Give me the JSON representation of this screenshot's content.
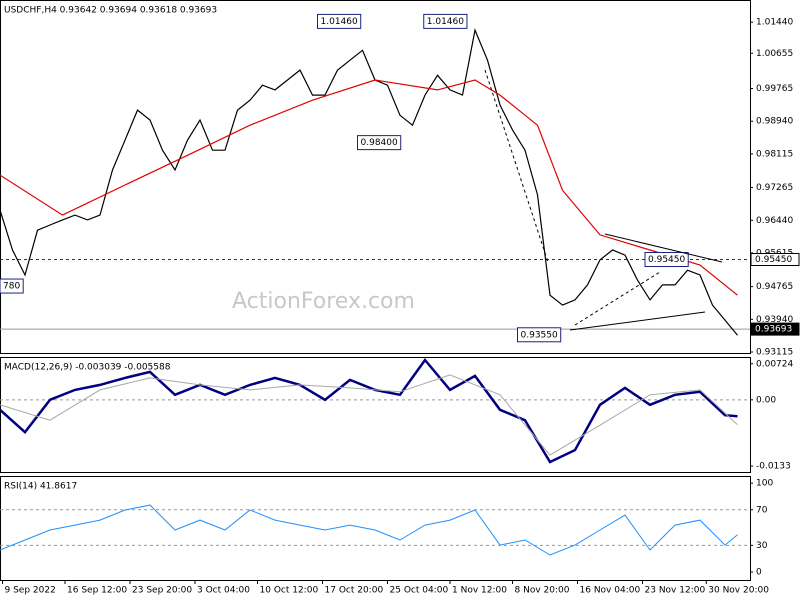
{
  "chart_data": [
    {
      "type": "line",
      "title": "USDCHF,H4  0.93642 0.93694 0.93618 0.93693",
      "watermark": "ActionForex.com",
      "xlim": [
        0,
        60
      ],
      "ylim": [
        0.9309,
        1.02
      ],
      "yticks": [
        {
          "value": 1.0144,
          "label": "1.01440"
        },
        {
          "value": 1.00655,
          "label": "1.00655"
        },
        {
          "value": 0.99765,
          "label": "0.99765"
        },
        {
          "value": 0.9894,
          "label": "0.98940"
        },
        {
          "value": 0.98115,
          "label": "0.98115"
        },
        {
          "value": 0.97265,
          "label": "0.97265"
        },
        {
          "value": 0.9644,
          "label": "0.96440"
        },
        {
          "value": 0.95615,
          "label": "0.95615"
        },
        {
          "value": 0.94765,
          "label": "0.94765"
        },
        {
          "value": 0.9394,
          "label": "0.93940"
        },
        {
          "value": 0.93115,
          "label": "0.93115"
        }
      ],
      "series": [
        {
          "color": "#000000",
          "x": [
            0,
            1,
            2,
            3,
            4,
            5,
            6,
            7,
            8,
            9,
            10,
            11,
            12,
            13,
            14,
            15,
            16,
            17,
            18,
            19,
            20,
            21,
            22,
            23,
            24,
            25,
            26,
            27,
            28,
            29,
            30,
            31,
            32,
            33,
            34,
            35,
            36,
            37,
            38,
            39,
            40,
            41,
            42,
            43,
            44,
            45,
            46,
            47,
            48,
            49,
            50,
            51,
            52,
            53,
            54,
            55,
            56,
            57,
            58,
            59
          ],
          "values": [
            0.967,
            0.9569,
            0.9506,
            0.9619,
            0.9632,
            0.9645,
            0.9657,
            0.9645,
            0.9657,
            0.9771,
            0.9846,
            0.9922,
            0.9897,
            0.9821,
            0.9771,
            0.9846,
            0.9897,
            0.9821,
            0.9821,
            0.9922,
            0.9947,
            0.9985,
            0.9973,
            0.9998,
            1.0023,
            0.996,
            0.996,
            1.0023,
            1.0048,
            1.0073,
            0.9998,
            0.9985,
            0.9909,
            0.9884,
            0.996,
            1.001,
            0.9973,
            0.996,
            1.0124,
            1.0048,
            0.9935,
            0.9872,
            0.9821,
            0.9708,
            0.9455,
            0.943,
            0.9443,
            0.9481,
            0.9544,
            0.9569,
            0.9556,
            0.9493,
            0.9443,
            0.9481,
            0.9481,
            0.9518,
            0.9506,
            0.943,
            0.9392,
            0.9354
          ]
        },
        {
          "color": "#e00000",
          "x": [
            0,
            5,
            10,
            15,
            20,
            25,
            30,
            35,
            38,
            40,
            43,
            45,
            48,
            52,
            56,
            59
          ],
          "values": [
            0.9758,
            0.9657,
            0.9733,
            0.9808,
            0.9884,
            0.9947,
            0.9998,
            0.9973,
            0.9998,
            0.996,
            0.9884,
            0.972,
            0.9607,
            0.9569,
            0.9531,
            0.9455
          ]
        }
      ],
      "hlines": [
        {
          "value": 0.9545,
          "label": "0.95450",
          "dash": true
        },
        {
          "value": 0.93693,
          "label": "0.93693",
          "dash": false
        }
      ],
      "annotations": [
        {
          "x": 25.4,
          "value": 1.0146,
          "label": "1.01460"
        },
        {
          "x": 33.9,
          "value": 1.0146,
          "label": "1.01460"
        },
        {
          "x": 28.6,
          "value": 0.984,
          "label": "0.98400"
        },
        {
          "x": 51.6,
          "value": 0.9545,
          "label": "0.95450"
        },
        {
          "x": 41.4,
          "value": 0.9355,
          "label": "0.93550"
        },
        {
          "x": 0,
          "value": 0.9478,
          "label": "780"
        }
      ]
    },
    {
      "type": "line",
      "title": "MACD(12,26,9) -0.003039 -0.005588",
      "xlim": [
        0,
        60
      ],
      "ylim": [
        -0.0145,
        0.0086
      ],
      "yticks": [
        0.00724,
        {
          "value": 0,
          "label": "0.00"
        },
        -0.0133
      ],
      "levels": [
        0
      ],
      "series": [
        {
          "color": "#000080",
          "width": 2.5,
          "x": [
            0,
            2,
            4,
            6,
            8,
            10,
            12,
            14,
            16,
            18,
            20,
            22,
            24,
            26,
            28,
            30,
            32,
            34,
            36,
            38,
            40,
            42,
            44,
            46,
            48,
            50,
            52,
            54,
            56,
            58,
            59
          ],
          "values": [
            -0.002,
            -0.0065,
            0,
            0.002,
            0.003,
            0.0044,
            0.0056,
            0.001,
            0.003,
            0.001,
            0.003,
            0.0044,
            0.003,
            0,
            0.004,
            0.002,
            0.001,
            0.008,
            0.002,
            0.0048,
            -0.002,
            -0.0041,
            -0.0125,
            -0.0101,
            -0.001,
            0.0024,
            -0.001,
            0.001,
            0.0016,
            -0.0031,
            -0.0033
          ]
        },
        {
          "color": "#a8a8a8",
          "width": 1,
          "x": [
            0,
            4,
            8,
            12,
            16,
            20,
            24,
            28,
            32,
            36,
            40,
            44,
            48,
            52,
            56,
            59
          ],
          "values": [
            -0.001,
            -0.0041,
            0.002,
            0.0044,
            0.003,
            0.002,
            0.003,
            0.0024,
            0.0016,
            0.005,
            0.001,
            -0.0111,
            -0.0051,
            0.001,
            0.002,
            -0.005
          ]
        }
      ]
    },
    {
      "type": "line",
      "title": "RSI(14) 41.8617",
      "xlim": [
        0,
        60
      ],
      "ylim": [
        -9,
        108
      ],
      "yticks": [
        100,
        70,
        30,
        0
      ],
      "levels": [
        70,
        30
      ],
      "series": [
        {
          "color": "#1e90ff",
          "width": 1,
          "x": [
            0,
            2,
            4,
            6,
            8,
            10,
            12,
            14,
            16,
            18,
            20,
            22,
            24,
            26,
            28,
            30,
            32,
            34,
            36,
            38,
            40,
            42,
            44,
            46,
            48,
            50,
            52,
            54,
            56,
            58,
            59
          ],
          "values": [
            24.7,
            36,
            47.2,
            52.8,
            58.4,
            69.7,
            75.3,
            47.2,
            58.4,
            47.2,
            69.7,
            58.4,
            52.8,
            47.2,
            52.8,
            47.2,
            36,
            52.8,
            58.4,
            69.7,
            30.3,
            36,
            19.1,
            30.3,
            47.2,
            64,
            24.7,
            52.8,
            58.4,
            30.3,
            41.9
          ]
        }
      ],
      "xticks": [
        {
          "value": 0.2,
          "label": "9 Sep 2022"
        },
        {
          "value": 5.2,
          "label": "16 Sep 12:00"
        },
        {
          "value": 10.4,
          "label": "23 Sep 20:00"
        },
        {
          "value": 15.6,
          "label": "3 Oct 04:00"
        },
        {
          "value": 20.6,
          "label": "10 Oct 12:00"
        },
        {
          "value": 25.8,
          "label": "17 Oct 20:00"
        },
        {
          "value": 31,
          "label": "25 Oct 04:00"
        },
        {
          "value": 36,
          "label": "1 Nov 12:00"
        },
        {
          "value": 41,
          "label": "8 Nov 20:00"
        },
        {
          "value": 46.2,
          "label": "16 Nov 04:00"
        },
        {
          "value": 51.4,
          "label": "23 Nov 12:00"
        },
        {
          "value": 56.5,
          "label": "30 Nov 20:00"
        }
      ]
    }
  ]
}
